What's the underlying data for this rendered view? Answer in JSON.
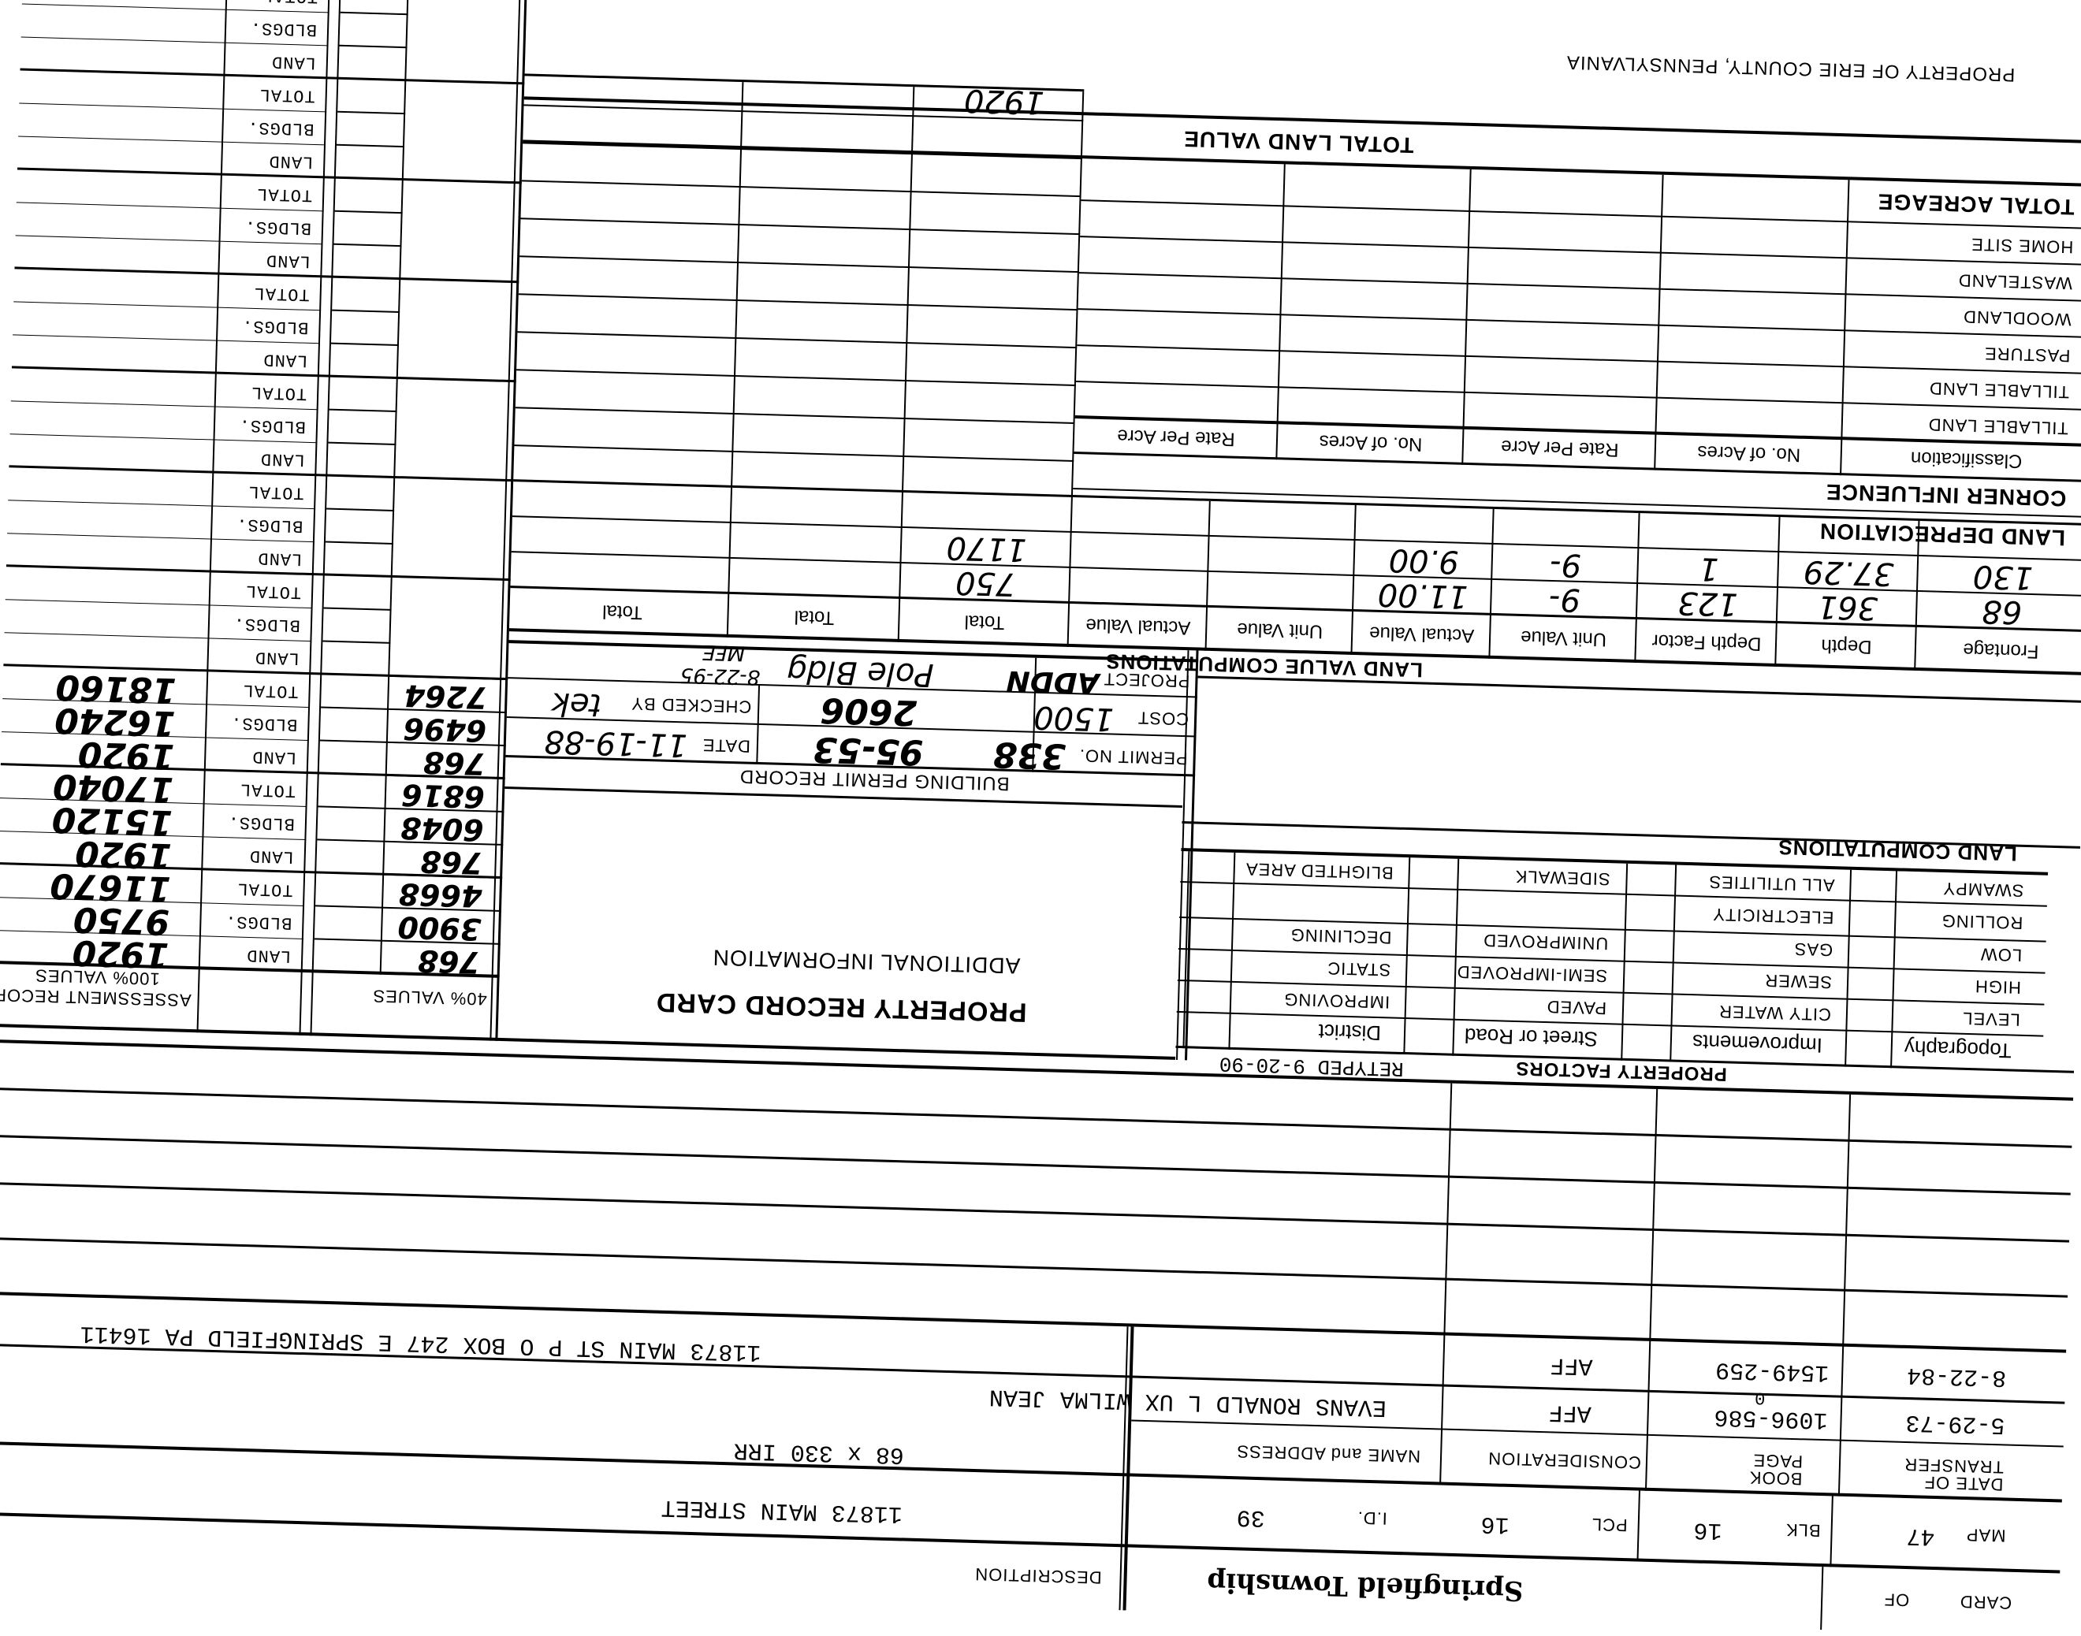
{
  "header": {
    "card_label": "CARD",
    "of_label": "OF",
    "township": "Springfield Township",
    "description_label": "DESCRIPTION"
  },
  "parcel": {
    "map_label": "MAP",
    "map": "47",
    "blk_label": "BLK",
    "blk": "16",
    "pcl_label": "PCL",
    "pcl": "16",
    "id_label": "I.D.",
    "id": "39"
  },
  "description": {
    "line1": "11873 MAIN STREET",
    "line2": "68 x 330 IRR"
  },
  "transfers": {
    "headers": [
      "DATE OF TRANSFER",
      "BOOK PAGE",
      "CONSIDERATION",
      "NAME and ADDRESS"
    ],
    "rows": [
      {
        "date": "5-29-73",
        "book_page": "1096-586",
        "consideration": "AFF",
        "name": "EVANS RONALD L UX WILMA JEAN"
      },
      {
        "date": "8-22-84",
        "book_page": "1549-259",
        "book_note": "0",
        "consideration": "AFF",
        "address": "11873 MAIN ST P O BOX 247 E SPRINGFIELD PA 16411"
      }
    ]
  },
  "property_factors": {
    "title": "PROPERTY FACTORS",
    "retyped": "RETYPED 9-20-90",
    "headers": [
      "Topography",
      "Improvements",
      "Street or Road",
      "District"
    ],
    "rows": [
      [
        "LEVEL",
        "CITY WATER",
        "PAVED",
        "IMPROVING"
      ],
      [
        "HIGH",
        "SEWER",
        "SEMI-IMPROVED",
        "STATIC"
      ],
      [
        "LOW",
        "GAS",
        "UNIMPROVED",
        "DECLINING"
      ],
      [
        "ROLLING",
        "ELECTRICITY",
        "",
        ""
      ],
      [
        "SWAMPY",
        "ALL UTILITIES",
        "SIDEWALK",
        "BLIGHTED AREA"
      ]
    ]
  },
  "land_computations": {
    "title": "LAND COMPUTATIONS"
  },
  "land_value": {
    "title": "LAND VALUE COMPUTATIONS",
    "headers": [
      "Frontage",
      "Depth",
      "Depth Factor",
      "Unit Value",
      "Actual Value",
      "Unit Value",
      "Actual Value",
      "Total",
      "Total",
      "Total"
    ],
    "rows": [
      [
        "68",
        "361",
        "123",
        "9-",
        "11.00",
        "",
        "",
        "750",
        "",
        ""
      ],
      [
        "130",
        "37.29",
        "1",
        "9-",
        "9.00",
        "",
        "",
        "1170",
        "",
        ""
      ]
    ]
  },
  "land_depreciation": "LAND DEPRECIATION",
  "corner_influence": "CORNER INFLUENCE",
  "acreage": {
    "headers": [
      "Classification",
      "No. of Acres",
      "Rate Per Acre",
      "No. of Acres",
      "Rate Per Acre"
    ],
    "rows": [
      "TILLABLE LAND",
      "TILLABLE LAND",
      "PASTURE",
      "WOODLAND",
      "WASTELAND",
      "HOME SITE"
    ],
    "total_label": "TOTAL ACREAGE"
  },
  "total_land_value": {
    "label": "TOTAL LAND VALUE",
    "value": "1920"
  },
  "footer": "PROPERTY OF ERIE COUNTY, PENNSYLVANIA",
  "record_card": {
    "title": "PROPERTY RECORD CARD",
    "additional_info": "ADDITIONAL INFORMATION"
  },
  "permit": {
    "title": "BUILDING PERMIT RECORD",
    "permit_no_label": "PERMIT NO.",
    "permit_no": "338",
    "permit_ref": "95-53",
    "date_label": "DATE",
    "date": "11-19-88",
    "cost_label": "COST",
    "cost": "1500",
    "cost_2": "2606",
    "checked_label": "CHECKED BY",
    "checked_by": "tek",
    "project_label": "PROJECT",
    "project": "ADDN",
    "project_desc": "Pole Bldg",
    "project_date": "8-22-95",
    "project_initials": "MFE"
  },
  "values_40": {
    "label": "40% VALUES",
    "values": [
      "768",
      "3900",
      "4668",
      "768",
      "6048",
      "6816",
      "768",
      "6496",
      "7264"
    ]
  },
  "assessment": {
    "title": "ASSESSMENT RECORD",
    "subtitle": "100% VALUES",
    "row_labels": [
      "LAND",
      "BLDGS.",
      "TOTAL"
    ],
    "groups": [
      [
        "1920",
        "9750",
        "11670"
      ],
      [
        "1920",
        "15120",
        "17040"
      ],
      [
        "1920",
        "16240",
        "18160"
      ]
    ],
    "group_count": 10
  }
}
